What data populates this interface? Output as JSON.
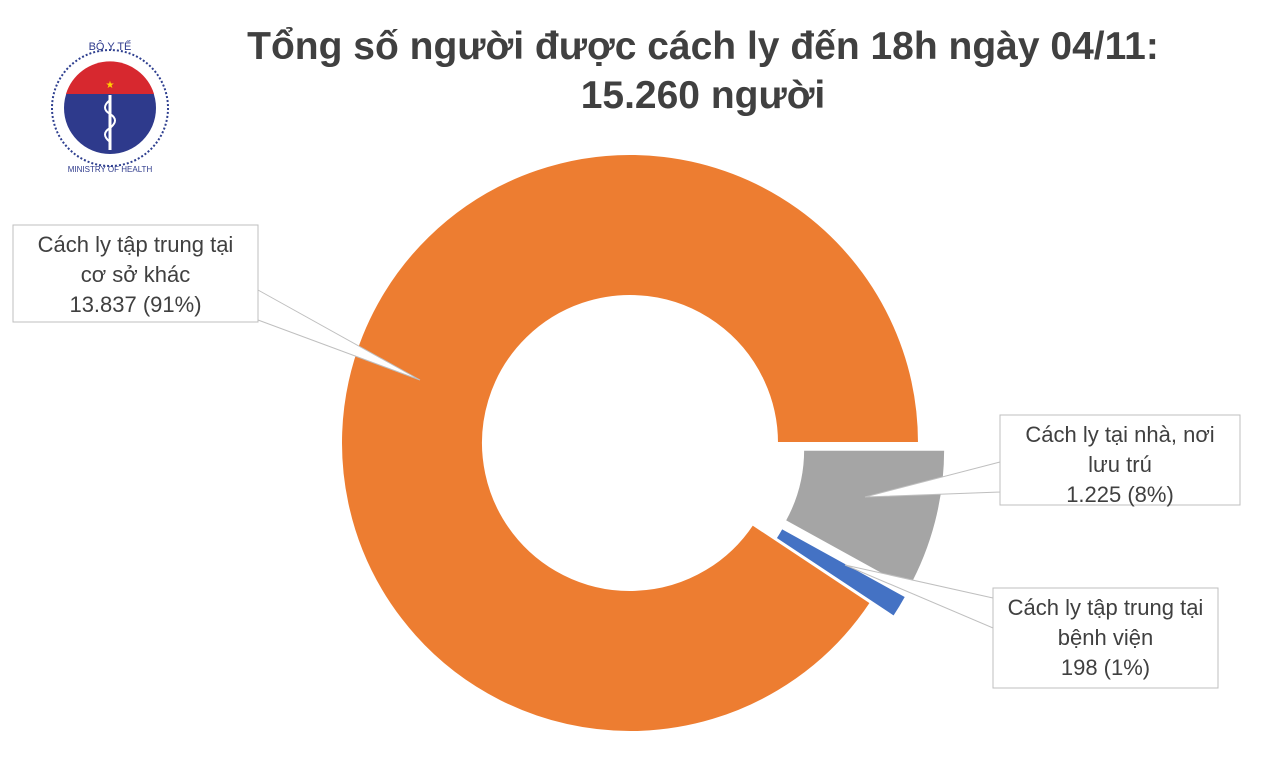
{
  "title_line1": "Tổng số người được cách ly đến 18h ngày 04/11:",
  "title_line2": "15.260 người",
  "logo": {
    "top_text": "BỘ Y TẾ",
    "bottom_text": "MINISTRY OF HEALTH"
  },
  "chart_data": {
    "type": "pie",
    "variant": "donut",
    "title": "Tổng số người được cách ly đến 18h ngày 04/11: 15.260 người",
    "total": 15260,
    "slices": [
      {
        "label_lines": [
          "Cách ly tại nhà, nơi",
          "lưu trú",
          "1.225 (8%)"
        ],
        "value": 1225,
        "percent": 8,
        "color": "#a5a5a5",
        "exploded": true
      },
      {
        "label_lines": [
          "Cách ly tập trung tại",
          "bệnh viện",
          "198 (1%)"
        ],
        "value": 198,
        "percent": 1,
        "color": "#4472c4",
        "exploded": true
      },
      {
        "label_lines": [
          "Cách ly tập trung tại",
          "cơ sở khác",
          "13.837 (91%)"
        ],
        "value": 13837,
        "percent": 91,
        "color": "#ed7d31",
        "exploded": false
      }
    ],
    "legend": "none",
    "data_labels": "callouts"
  }
}
